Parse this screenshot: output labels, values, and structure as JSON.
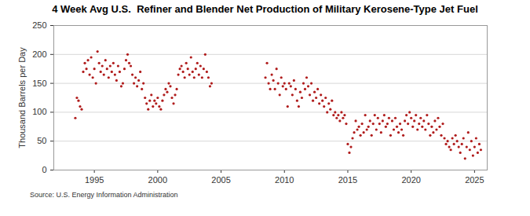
{
  "chart_data": {
    "type": "scatter",
    "title": "4 Week Avg U.S.  Refiner and Blender Net Production of Military Kerosene-Type Jet Fuel",
    "y_label": "Thousand Barrels per Day",
    "source": "Source: U.S. Energy Information Administration",
    "color": "#b01c1c",
    "marker": "circle",
    "grid": true,
    "xlim": [
      1991.8,
      2026
    ],
    "xticks": [
      1995,
      2000,
      2005,
      2010,
      2015,
      2020,
      2025
    ],
    "ylim": [
      0,
      250
    ],
    "yticks": [
      0,
      50,
      100,
      150,
      200,
      250
    ],
    "x": [
      1993.5,
      1993.625,
      1993.75,
      1993.875,
      1994.0,
      1994.125,
      1994.25,
      1994.375,
      1994.5,
      1994.625,
      1994.75,
      1994.875,
      1995.0,
      1995.125,
      1995.25,
      1995.375,
      1995.5,
      1995.625,
      1995.75,
      1995.875,
      1996.0,
      1996.125,
      1996.25,
      1996.375,
      1996.5,
      1996.625,
      1996.75,
      1996.875,
      1997.0,
      1997.125,
      1997.25,
      1997.375,
      1997.5,
      1997.625,
      1997.75,
      1997.875,
      1998.0,
      1998.125,
      1998.25,
      1998.375,
      1998.5,
      1998.625,
      1998.75,
      1998.875,
      1999.0,
      1999.125,
      1999.25,
      1999.375,
      1999.5,
      1999.625,
      1999.75,
      1999.875,
      2000.0,
      2000.125,
      2000.25,
      2000.375,
      2000.5,
      2000.625,
      2000.75,
      2000.875,
      2001.0,
      2001.125,
      2001.25,
      2001.375,
      2001.5,
      2001.625,
      2001.75,
      2001.875,
      2002.0,
      2002.125,
      2002.25,
      2002.375,
      2002.5,
      2002.625,
      2002.75,
      2002.875,
      2003.0,
      2003.125,
      2003.25,
      2003.375,
      2003.5,
      2003.625,
      2003.75,
      2003.875,
      2004.0,
      2004.125,
      2004.25,
      2008.5,
      2008.625,
      2008.75,
      2008.875,
      2009.0,
      2009.125,
      2009.25,
      2009.375,
      2009.5,
      2009.625,
      2009.75,
      2009.875,
      2010.0,
      2010.125,
      2010.25,
      2010.375,
      2010.5,
      2010.625,
      2010.75,
      2010.875,
      2011.0,
      2011.125,
      2011.25,
      2011.375,
      2011.5,
      2011.625,
      2011.75,
      2011.875,
      2012.0,
      2012.125,
      2012.25,
      2012.375,
      2012.5,
      2012.625,
      2012.75,
      2012.875,
      2013.0,
      2013.125,
      2013.25,
      2013.375,
      2013.5,
      2013.625,
      2013.75,
      2013.875,
      2014.0,
      2014.125,
      2014.25,
      2014.375,
      2014.5,
      2014.625,
      2014.75,
      2014.875,
      2015.0,
      2015.125,
      2015.25,
      2015.375,
      2015.5,
      2015.625,
      2015.75,
      2015.875,
      2016.0,
      2016.125,
      2016.25,
      2016.375,
      2016.5,
      2016.625,
      2016.75,
      2016.875,
      2017.0,
      2017.125,
      2017.25,
      2017.375,
      2017.5,
      2017.625,
      2017.75,
      2017.875,
      2018.0,
      2018.125,
      2018.25,
      2018.375,
      2018.5,
      2018.625,
      2018.75,
      2018.875,
      2019.0,
      2019.125,
      2019.25,
      2019.375,
      2019.5,
      2019.625,
      2019.75,
      2019.875,
      2020.0,
      2020.125,
      2020.25,
      2020.375,
      2020.5,
      2020.625,
      2020.75,
      2020.875,
      2021.0,
      2021.125,
      2021.25,
      2021.375,
      2021.5,
      2021.625,
      2021.75,
      2021.875,
      2022.0,
      2022.125,
      2022.25,
      2022.375,
      2022.5,
      2022.625,
      2022.75,
      2022.875,
      2023.0,
      2023.125,
      2023.25,
      2023.375,
      2023.5,
      2023.625,
      2023.75,
      2023.875,
      2024.0,
      2024.125,
      2024.25,
      2024.375,
      2024.5,
      2024.625,
      2024.75,
      2024.875,
      2025.0,
      2025.125,
      2025.25,
      2025.375,
      2025.5
    ],
    "values": [
      90,
      125,
      120,
      110,
      105,
      170,
      185,
      175,
      190,
      165,
      195,
      160,
      175,
      150,
      205,
      185,
      170,
      180,
      165,
      190,
      175,
      160,
      180,
      170,
      185,
      165,
      155,
      180,
      170,
      145,
      150,
      175,
      190,
      200,
      185,
      180,
      165,
      150,
      160,
      145,
      155,
      170,
      140,
      150,
      125,
      115,
      105,
      120,
      130,
      110,
      120,
      115,
      125,
      110,
      105,
      120,
      130,
      140,
      135,
      150,
      145,
      125,
      115,
      130,
      140,
      165,
      175,
      180,
      170,
      160,
      185,
      175,
      165,
      195,
      170,
      160,
      175,
      185,
      165,
      180,
      160,
      175,
      200,
      170,
      160,
      145,
      150,
      160,
      185,
      150,
      140,
      165,
      155,
      140,
      175,
      150,
      130,
      160,
      145,
      150,
      140,
      110,
      150,
      145,
      130,
      155,
      140,
      120,
      110,
      135,
      125,
      150,
      140,
      160,
      145,
      130,
      150,
      120,
      135,
      125,
      140,
      115,
      130,
      120,
      110,
      125,
      100,
      115,
      105,
      120,
      95,
      100,
      90,
      95,
      85,
      100,
      90,
      95,
      80,
      45,
      30,
      40,
      55,
      65,
      85,
      70,
      75,
      60,
      80,
      65,
      95,
      70,
      75,
      85,
      60,
      80,
      95,
      70,
      90,
      80,
      65,
      85,
      95,
      75,
      80,
      90,
      60,
      85,
      70,
      90,
      75,
      65,
      80,
      70,
      60,
      85,
      95,
      80,
      100,
      90,
      75,
      85,
      95,
      70,
      80,
      90,
      75,
      85,
      70,
      95,
      80,
      60,
      75,
      65,
      85,
      70,
      90,
      75,
      60,
      80,
      55,
      45,
      50,
      40,
      35,
      55,
      45,
      60,
      50,
      40,
      30,
      45,
      55,
      20,
      40,
      65,
      35,
      50,
      25,
      40,
      55,
      30,
      45,
      35
    ]
  }
}
